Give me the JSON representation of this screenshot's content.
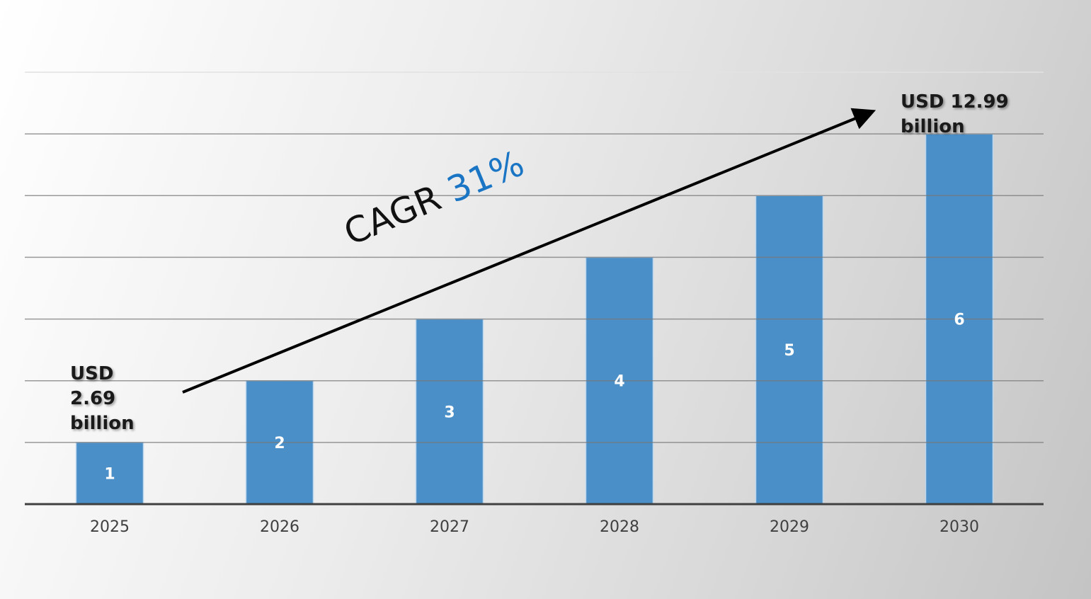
{
  "chart_data": {
    "type": "bar",
    "categories": [
      "2025",
      "2026",
      "2027",
      "2028",
      "2029",
      "2030"
    ],
    "values": [
      1,
      2,
      3,
      4,
      5,
      6
    ],
    "data_labels": [
      "1",
      "2",
      "3",
      "4",
      "5",
      "6"
    ],
    "title": "",
    "xlabel": "",
    "ylabel": "",
    "ylim": [
      0,
      7
    ],
    "grid": true,
    "bar_color": "#4a8fc8",
    "annotations": {
      "start": "USD 2.69 billion",
      "end": "USD 12.99 billion",
      "cagr_label": "CAGR",
      "cagr_value": "31%",
      "cagr_color": "#1a75c4"
    }
  }
}
